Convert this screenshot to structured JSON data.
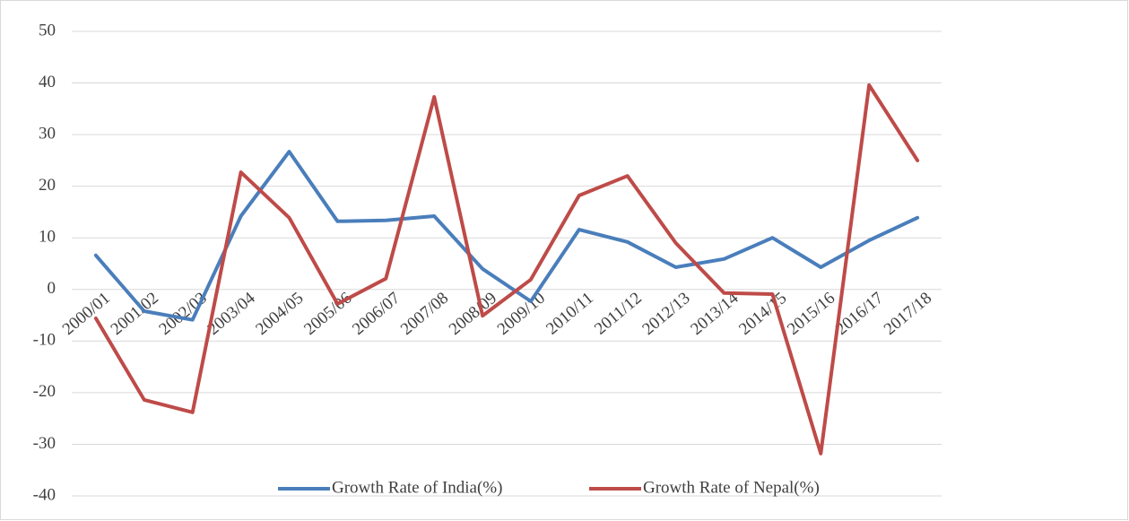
{
  "chart_data": {
    "type": "line",
    "categories": [
      "2000/01",
      "2001/02",
      "2002/03",
      "2003/04",
      "2004/05",
      "2005/06",
      "2006/07",
      "2007/08",
      "2008/09",
      "2009/10",
      "2010/11",
      "2011/12",
      "2012/13",
      "2013/14",
      "2014/15",
      "2015/16",
      "2016/17",
      "2017/18"
    ],
    "series": [
      {
        "name": "Growth Rate of India(%)",
        "color": "#4a7ebb",
        "values": [
          6.6,
          -4.2,
          -5.9,
          14.2,
          26.7,
          13.2,
          13.4,
          14.2,
          4.0,
          -2.3,
          11.6,
          9.2,
          4.3,
          5.9,
          10.0,
          4.3,
          9.5,
          13.9
        ]
      },
      {
        "name": "Growth Rate of Nepal(%)",
        "color": "#be4b48",
        "values": [
          -5.6,
          -21.4,
          -23.8,
          22.7,
          13.9,
          -2.8,
          2.1,
          37.3,
          -5.1,
          1.9,
          18.2,
          22.0,
          9.0,
          -0.7,
          -0.9,
          -31.8,
          39.6,
          25.0
        ]
      }
    ],
    "ylim": [
      -40,
      50
    ],
    "yticks": [
      -40,
      -30,
      -20,
      -10,
      0,
      10,
      20,
      30,
      40,
      50
    ],
    "grid": true,
    "legend": "bottom"
  }
}
